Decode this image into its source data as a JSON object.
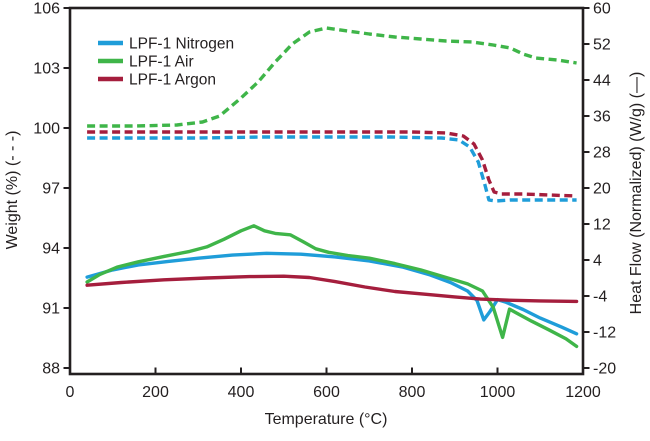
{
  "figure": {
    "background": "#ffffff",
    "text_color": "#231F20",
    "axis_color": "#231F20"
  },
  "chart_data": {
    "type": "line",
    "title": "",
    "xlabel": "Temperature (°C)",
    "ylabel_left": "Weight (%) (- - -)",
    "ylabel_right": "Heat Flow (Normalized) (W/g) (—)",
    "grid": false,
    "x_axis": {
      "min": 0,
      "max": 1200,
      "ticks": [
        0,
        200,
        400,
        600,
        800,
        1000,
        1200
      ]
    },
    "y_left": {
      "min": 88,
      "max": 106,
      "ticks": [
        88,
        91,
        94,
        97,
        100,
        103,
        106
      ]
    },
    "y_right": {
      "min": -20,
      "max": 60,
      "ticks": [
        -20,
        -12,
        -4,
        4,
        12,
        20,
        28,
        36,
        44,
        52,
        60
      ]
    },
    "legend": {
      "position": "top-left",
      "entries": [
        {
          "label": "LPF-1 Nitrogen",
          "color": "#1F9DD9"
        },
        {
          "label": "LPF-1 Air",
          "color": "#3FB549"
        },
        {
          "label": "LPF-1 Argon",
          "color": "#A51E3D"
        }
      ]
    },
    "series": [
      {
        "name": "LPF-1 Nitrogen Weight",
        "axis": "left",
        "style": "dashed",
        "color": "#1F9DD9",
        "points": [
          [
            40,
            99.5
          ],
          [
            150,
            99.5
          ],
          [
            300,
            99.5
          ],
          [
            450,
            99.55
          ],
          [
            600,
            99.55
          ],
          [
            750,
            99.55
          ],
          [
            870,
            99.5
          ],
          [
            910,
            99.4
          ],
          [
            935,
            99.05
          ],
          [
            955,
            98.3
          ],
          [
            970,
            97.2
          ],
          [
            980,
            96.4
          ],
          [
            995,
            96.35
          ],
          [
            1030,
            96.4
          ],
          [
            1100,
            96.4
          ],
          [
            1185,
            96.4
          ]
        ]
      },
      {
        "name": "LPF-1 Air Weight",
        "axis": "left",
        "style": "dashed",
        "color": "#3FB549",
        "points": [
          [
            40,
            100.1
          ],
          [
            150,
            100.1
          ],
          [
            250,
            100.15
          ],
          [
            310,
            100.3
          ],
          [
            350,
            100.6
          ],
          [
            400,
            101.5
          ],
          [
            440,
            102.3
          ],
          [
            480,
            103.3
          ],
          [
            520,
            104.2
          ],
          [
            560,
            104.8
          ],
          [
            600,
            105.0
          ],
          [
            650,
            104.85
          ],
          [
            700,
            104.7
          ],
          [
            760,
            104.55
          ],
          [
            820,
            104.45
          ],
          [
            880,
            104.35
          ],
          [
            940,
            104.3
          ],
          [
            990,
            104.15
          ],
          [
            1030,
            104.0
          ],
          [
            1060,
            103.7
          ],
          [
            1090,
            103.5
          ],
          [
            1140,
            103.4
          ],
          [
            1185,
            103.25
          ]
        ]
      },
      {
        "name": "LPF-1 Argon Weight",
        "axis": "left",
        "style": "dashed",
        "color": "#A51E3D",
        "points": [
          [
            40,
            99.8
          ],
          [
            200,
            99.8
          ],
          [
            400,
            99.8
          ],
          [
            600,
            99.8
          ],
          [
            800,
            99.8
          ],
          [
            880,
            99.75
          ],
          [
            920,
            99.6
          ],
          [
            945,
            99.2
          ],
          [
            965,
            98.4
          ],
          [
            980,
            97.4
          ],
          [
            992,
            96.8
          ],
          [
            1010,
            96.7
          ],
          [
            1060,
            96.7
          ],
          [
            1120,
            96.65
          ],
          [
            1185,
            96.6
          ]
        ]
      },
      {
        "name": "LPF-1 Nitrogen Heat Flow",
        "axis": "right",
        "style": "solid",
        "color": "#1F9DD9",
        "points": [
          [
            40,
            0.2
          ],
          [
            100,
            1.8
          ],
          [
            160,
            2.9
          ],
          [
            230,
            3.7
          ],
          [
            300,
            4.4
          ],
          [
            380,
            5.1
          ],
          [
            460,
            5.5
          ],
          [
            540,
            5.3
          ],
          [
            620,
            4.7
          ],
          [
            700,
            3.8
          ],
          [
            780,
            2.4
          ],
          [
            842,
            0.7
          ],
          [
            890,
            -1.0
          ],
          [
            930,
            -2.9
          ],
          [
            952,
            -5.0
          ],
          [
            968,
            -9.3
          ],
          [
            982,
            -7.5
          ],
          [
            1000,
            -4.8
          ],
          [
            1020,
            -5.4
          ],
          [
            1060,
            -7.0
          ],
          [
            1100,
            -8.9
          ],
          [
            1150,
            -10.9
          ],
          [
            1185,
            -12.4
          ]
        ]
      },
      {
        "name": "LPF-1 Air Heat Flow",
        "axis": "right",
        "style": "solid",
        "color": "#3FB549",
        "points": [
          [
            40,
            -0.9
          ],
          [
            70,
            0.8
          ],
          [
            110,
            2.4
          ],
          [
            160,
            3.6
          ],
          [
            220,
            4.8
          ],
          [
            280,
            5.9
          ],
          [
            320,
            6.9
          ],
          [
            360,
            8.6
          ],
          [
            400,
            10.5
          ],
          [
            430,
            11.6
          ],
          [
            455,
            10.5
          ],
          [
            480,
            9.9
          ],
          [
            515,
            9.6
          ],
          [
            545,
            8.1
          ],
          [
            575,
            6.5
          ],
          [
            605,
            5.7
          ],
          [
            650,
            5.0
          ],
          [
            700,
            4.4
          ],
          [
            760,
            3.2
          ],
          [
            820,
            1.8
          ],
          [
            880,
            0.1
          ],
          [
            930,
            -1.3
          ],
          [
            965,
            -2.9
          ],
          [
            990,
            -6.5
          ],
          [
            1003,
            -10.5
          ],
          [
            1012,
            -13.2
          ],
          [
            1020,
            -10.0
          ],
          [
            1028,
            -6.9
          ],
          [
            1045,
            -7.8
          ],
          [
            1080,
            -9.6
          ],
          [
            1120,
            -11.5
          ],
          [
            1160,
            -13.5
          ],
          [
            1185,
            -15.2
          ]
        ]
      },
      {
        "name": "LPF-1 Argon Heat Flow",
        "axis": "right",
        "style": "solid",
        "color": "#A51E3D",
        "points": [
          [
            40,
            -1.6
          ],
          [
            120,
            -1.0
          ],
          [
            220,
            -0.4
          ],
          [
            320,
            0.0
          ],
          [
            420,
            0.3
          ],
          [
            500,
            0.4
          ],
          [
            560,
            0.1
          ],
          [
            620,
            -0.8
          ],
          [
            690,
            -2.0
          ],
          [
            760,
            -3.0
          ],
          [
            830,
            -3.6
          ],
          [
            900,
            -4.2
          ],
          [
            960,
            -4.7
          ],
          [
            1020,
            -4.9
          ],
          [
            1100,
            -5.1
          ],
          [
            1185,
            -5.2
          ]
        ]
      }
    ]
  }
}
